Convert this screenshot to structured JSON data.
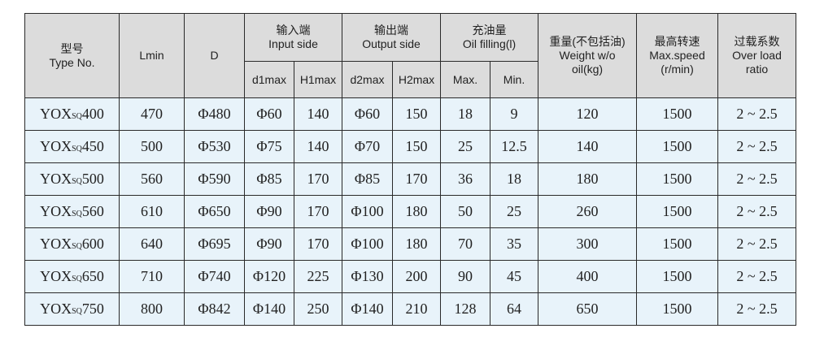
{
  "header": {
    "type_no": {
      "zh": "型号",
      "en": "Type No."
    },
    "lmin": "Lmin",
    "d": "D",
    "input_side": {
      "zh": "输入端",
      "en": "Input side",
      "d1max": "d1max",
      "h1max": "H1max"
    },
    "output_side": {
      "zh": "输出端",
      "en": "Output side",
      "d2max": "d2max",
      "h2max": "H2max"
    },
    "oil_filling": {
      "zh": "充油量",
      "en": "Oil filling(l)",
      "max": "Max.",
      "min": "Min."
    },
    "weight": {
      "zh": "重量(不包括油)",
      "en1": "Weight w/o",
      "en2": "oil(kg)"
    },
    "max_speed": {
      "zh": "最高转速",
      "en1": "Max.speed",
      "en2": "(r/min)"
    },
    "overload": {
      "zh": "过载系数",
      "en1": "Over load",
      "en2": "ratio"
    }
  },
  "rows": [
    {
      "prefix": "YOX",
      "sub": "SQ",
      "size": "400",
      "lmin": "470",
      "d": "Φ480",
      "d1max": "Φ60",
      "h1max": "140",
      "d2max": "Φ60",
      "h2max": "150",
      "oil_max": "18",
      "oil_min": "9",
      "weight": "120",
      "speed": "1500",
      "overload": "2 ~ 2.5"
    },
    {
      "prefix": "YOX",
      "sub": "SQ",
      "size": "450",
      "lmin": "500",
      "d": "Φ530",
      "d1max": "Φ75",
      "h1max": "140",
      "d2max": "Φ70",
      "h2max": "150",
      "oil_max": "25",
      "oil_min": "12.5",
      "weight": "140",
      "speed": "1500",
      "overload": "2 ~ 2.5"
    },
    {
      "prefix": "YOX",
      "sub": "SQ",
      "size": "500",
      "lmin": "560",
      "d": "Φ590",
      "d1max": "Φ85",
      "h1max": "170",
      "d2max": "Φ85",
      "h2max": "170",
      "oil_max": "36",
      "oil_min": "18",
      "weight": "180",
      "speed": "1500",
      "overload": "2 ~ 2.5"
    },
    {
      "prefix": "YOX",
      "sub": "SQ",
      "size": "560",
      "lmin": "610",
      "d": "Φ650",
      "d1max": "Φ90",
      "h1max": "170",
      "d2max": "Φ100",
      "h2max": "180",
      "oil_max": "50",
      "oil_min": "25",
      "weight": "260",
      "speed": "1500",
      "overload": "2 ~ 2.5"
    },
    {
      "prefix": "YOX",
      "sub": "SQ",
      "size": "600",
      "lmin": "640",
      "d": "Φ695",
      "d1max": "Φ90",
      "h1max": "170",
      "d2max": "Φ100",
      "h2max": "180",
      "oil_max": "70",
      "oil_min": "35",
      "weight": "300",
      "speed": "1500",
      "overload": "2 ~ 2.5"
    },
    {
      "prefix": "YOX",
      "sub": "SQ",
      "size": "650",
      "lmin": "710",
      "d": "Φ740",
      "d1max": "Φ120",
      "h1max": "225",
      "d2max": "Φ130",
      "h2max": "200",
      "oil_max": "90",
      "oil_min": "45",
      "weight": "400",
      "speed": "1500",
      "overload": "2 ~ 2.5"
    },
    {
      "prefix": "YOX",
      "sub": "SQ",
      "size": "750",
      "lmin": "800",
      "d": "Φ842",
      "d1max": "Φ140",
      "h1max": "250",
      "d2max": "Φ140",
      "h2max": "210",
      "oil_max": "128",
      "oil_min": "64",
      "weight": "650",
      "speed": "1500",
      "overload": "2 ~ 2.5"
    }
  ]
}
